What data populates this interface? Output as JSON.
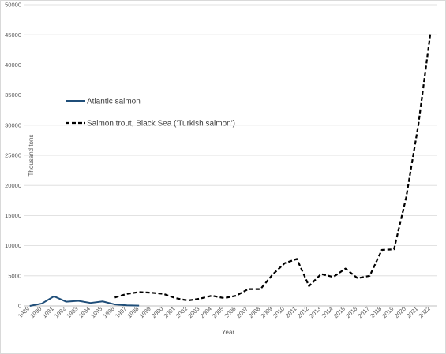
{
  "chart_data": {
    "type": "line",
    "title": "",
    "xlabel": "Year",
    "ylabel": "Thousand tons",
    "ylim": [
      0,
      50000
    ],
    "yticks": [
      0,
      5000,
      10000,
      15000,
      20000,
      25000,
      30000,
      35000,
      40000,
      45000,
      50000
    ],
    "categories": [
      "1989",
      "1990",
      "1991",
      "1992",
      "1993",
      "1994",
      "1995",
      "1996",
      "1997",
      "1998",
      "1999",
      "2000",
      "2001",
      "2002",
      "2003",
      "2004",
      "2005",
      "2006",
      "2007",
      "2008",
      "2009",
      "2010",
      "2011",
      "2012",
      "2013",
      "2014",
      "2015",
      "2016",
      "2017",
      "2018",
      "2019",
      "2020",
      "2021",
      "2022"
    ],
    "grid": true,
    "legend_position": "upper-left",
    "series": [
      {
        "name": "Atlantic salmon",
        "color": "#1f4e79",
        "style": "solid",
        "values": [
          0,
          400,
          1600,
          700,
          850,
          500,
          750,
          250,
          100,
          50,
          null,
          null,
          null,
          null,
          null,
          null,
          null,
          null,
          null,
          null,
          null,
          null,
          null,
          null,
          null,
          null,
          null,
          null,
          null,
          null,
          null,
          null,
          null,
          null
        ]
      },
      {
        "name": "Salmon trout, Black Sea ('Turkish salmon')",
        "color": "#000000",
        "style": "dashed",
        "values": [
          null,
          null,
          null,
          null,
          null,
          null,
          null,
          1400,
          2000,
          2300,
          2200,
          2000,
          1300,
          900,
          1200,
          1700,
          1300,
          1700,
          2800,
          2800,
          5200,
          7100,
          7800,
          3300,
          5300,
          4800,
          6200,
          4600,
          5000,
          9300,
          9400,
          18000,
          30000,
          45300
        ]
      }
    ]
  }
}
